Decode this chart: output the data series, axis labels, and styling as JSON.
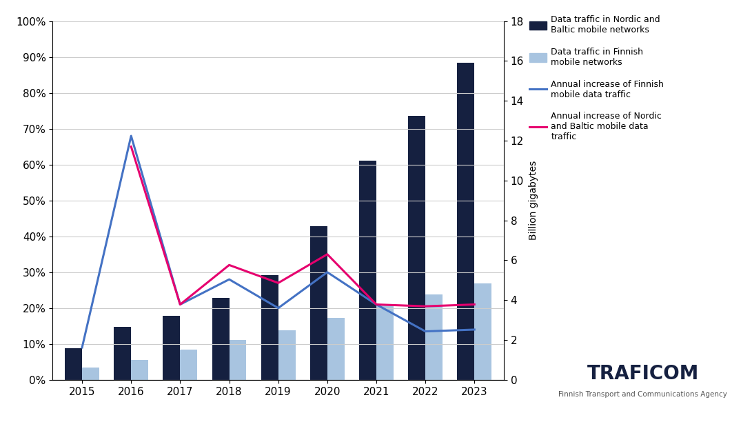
{
  "years": [
    2015,
    2016,
    2017,
    2018,
    2019,
    2020,
    2021,
    2022,
    2023
  ],
  "nordic_baltic_traffic": [
    1.6,
    2.65,
    3.2,
    4.1,
    5.25,
    7.7,
    11.0,
    13.25,
    15.9
  ],
  "finnish_traffic": [
    0.6,
    1.0,
    1.5,
    2.0,
    2.5,
    3.1,
    3.8,
    4.3,
    4.85
  ],
  "finnish_increase": [
    0.09,
    0.68,
    0.21,
    0.28,
    0.2,
    0.3,
    0.21,
    0.135,
    0.14
  ],
  "nordic_increase": [
    null,
    0.65,
    0.21,
    0.32,
    0.27,
    0.35,
    0.21,
    0.205,
    0.21
  ],
  "bar_color_nordic": "#152040",
  "bar_color_finnish": "#a8c4e0",
  "line_color_finnish": "#4472c4",
  "line_color_nordic": "#e6006e",
  "background_color": "#ffffff",
  "left_ylim": [
    0,
    1.0
  ],
  "right_ylim": [
    0,
    18
  ],
  "left_yticks": [
    0.0,
    0.1,
    0.2,
    0.3,
    0.4,
    0.5,
    0.6,
    0.7,
    0.8,
    0.9,
    1.0
  ],
  "right_yticks": [
    0,
    2,
    4,
    6,
    8,
    10,
    12,
    14,
    16,
    18
  ],
  "legend_nordic_bar": "Data traffic in Nordic and\nBaltic mobile networks",
  "legend_finnish_bar": "Data traffic in Finnish\nmobile networks",
  "legend_finnish_line": "Annual increase of Finnish\nmobile data traffic",
  "legend_nordic_line": "Annual increase of Nordic\nand Baltic mobile data\ntraffic",
  "right_ylabel": "Billion gigabytes",
  "grid_color": "#cccccc",
  "tick_labelsize": 11,
  "bar_width": 0.35,
  "line_width": 2.2
}
